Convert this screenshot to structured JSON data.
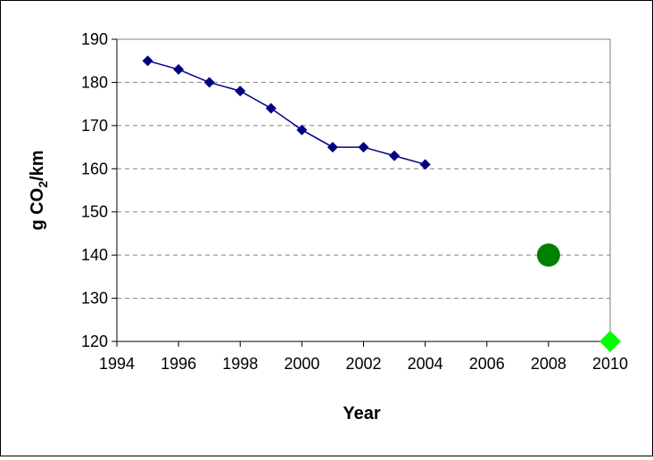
{
  "chart_data": {
    "type": "scatter",
    "title": "",
    "xlabel": "Year",
    "ylabel": {
      "prefix": "g CO",
      "subscript": "2",
      "suffix": "/km"
    },
    "xlim": [
      1994,
      2010
    ],
    "ylim": [
      120,
      190
    ],
    "xticks": [
      "1994",
      "1996",
      "1998",
      "2000",
      "2002",
      "2004",
      "2006",
      "2008",
      "2010"
    ],
    "yticks": [
      "120",
      "130",
      "140",
      "150",
      "160",
      "170",
      "180",
      "190"
    ],
    "grid": "horizontal-dashed",
    "legend": "none",
    "series": [
      {
        "style": "line-with-markers",
        "marker": "diamond",
        "color": "#000080",
        "points": [
          {
            "x": 1995,
            "y": 185
          },
          {
            "x": 1996,
            "y": 183
          },
          {
            "x": 1997,
            "y": 180
          },
          {
            "x": 1998,
            "y": 178
          },
          {
            "x": 1999,
            "y": 174
          },
          {
            "x": 2000,
            "y": 169
          },
          {
            "x": 2001,
            "y": 165
          },
          {
            "x": 2002,
            "y": 165
          },
          {
            "x": 2003,
            "y": 163
          },
          {
            "x": 2004,
            "y": 161
          }
        ]
      },
      {
        "style": "marker-only",
        "marker": "circle",
        "color": "#008000",
        "points": [
          {
            "x": 2008,
            "y": 140
          }
        ]
      },
      {
        "style": "marker-only",
        "marker": "diamond",
        "color": "#00ff00",
        "points": [
          {
            "x": 2010,
            "y": 120
          }
        ]
      }
    ]
  }
}
